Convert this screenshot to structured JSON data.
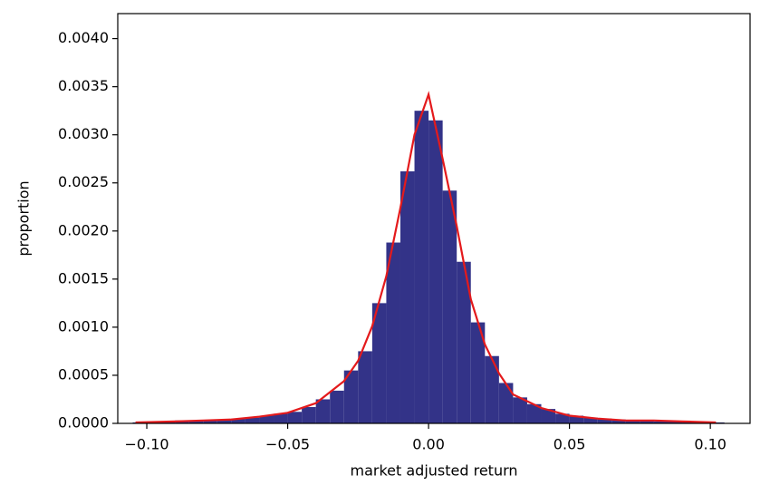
{
  "chart_data": {
    "type": "histogram",
    "xlabel": "market adjusted return",
    "ylabel": "proportion",
    "color": "#333388",
    "bins": [
      -0.105,
      -0.1,
      -0.095,
      -0.09,
      -0.085,
      -0.08,
      -0.075,
      -0.07,
      -0.065,
      -0.06,
      -0.055,
      -0.05,
      -0.045,
      -0.04,
      -0.035,
      -0.03,
      -0.025,
      -0.02,
      -0.015,
      -0.01,
      -0.005,
      0,
      0.005,
      0.01,
      0.015,
      0.02,
      0.025,
      0.03,
      0.035,
      0.04,
      0.045,
      0.05,
      0.055,
      0.06,
      0.065,
      0.07,
      0.075,
      0.08,
      0.085,
      0.09,
      0.095,
      0.1,
      0.105
    ],
    "values": [
      1e-05,
      2e-05,
      2e-05,
      3e-05,
      3e-05,
      3e-05,
      4e-05,
      5e-05,
      6e-05,
      8e-05,
      0.0001,
      0.00012,
      0.00017,
      0.00025,
      0.00034,
      0.00055,
      0.00075,
      0.00125,
      0.00188,
      0.00262,
      0.00325,
      0.00315,
      0.00242,
      0.00168,
      0.00105,
      0.0007,
      0.00042,
      0.00027,
      0.0002,
      0.00015,
      0.0001,
      8e-05,
      6e-05,
      5e-05,
      4e-05,
      3e-05,
      3e-05,
      2e-05,
      2e-05,
      2e-05,
      1e-05,
      1e-05
    ],
    "kde": {
      "color": "#e41a1c",
      "x": [
        -0.104,
        -0.09,
        -0.08,
        -0.07,
        -0.06,
        -0.05,
        -0.04,
        -0.03,
        -0.025,
        -0.02,
        -0.015,
        -0.01,
        -0.005,
        0,
        0.005,
        0.01,
        0.015,
        0.02,
        0.025,
        0.03,
        0.04,
        0.05,
        0.06,
        0.07,
        0.08,
        0.09,
        0.102
      ],
      "values": [
        1e-05,
        2e-05,
        3e-05,
        4e-05,
        7e-05,
        0.00011,
        0.00021,
        0.00044,
        0.00065,
        0.00101,
        0.00153,
        0.00224,
        0.003,
        0.00342,
        0.00275,
        0.00205,
        0.00129,
        0.00082,
        0.00052,
        0.0003,
        0.00016,
        8e-05,
        5e-05,
        3e-05,
        3e-05,
        2e-05,
        1e-05
      ]
    },
    "xlim": [
      -0.1103,
      0.1141
    ],
    "ylim": [
      0,
      0.00426
    ],
    "xticks": [
      {
        "value": -0.1,
        "label": "−0.10"
      },
      {
        "value": -0.05,
        "label": "−0.05"
      },
      {
        "value": 0,
        "label": "0.00"
      },
      {
        "value": 0.05,
        "label": "0.05"
      },
      {
        "value": 0.1,
        "label": "0.10"
      }
    ],
    "yticks": [
      {
        "value": 0,
        "label": "0.0000"
      },
      {
        "value": 0.0005,
        "label": "0.0005"
      },
      {
        "value": 0.001,
        "label": "0.0010"
      },
      {
        "value": 0.0015,
        "label": "0.0015"
      },
      {
        "value": 0.002,
        "label": "0.0020"
      },
      {
        "value": 0.0025,
        "label": "0.0025"
      },
      {
        "value": 0.003,
        "label": "0.0030"
      },
      {
        "value": 0.0035,
        "label": "0.0035"
      },
      {
        "value": 0.004,
        "label": "0.0040"
      }
    ]
  }
}
